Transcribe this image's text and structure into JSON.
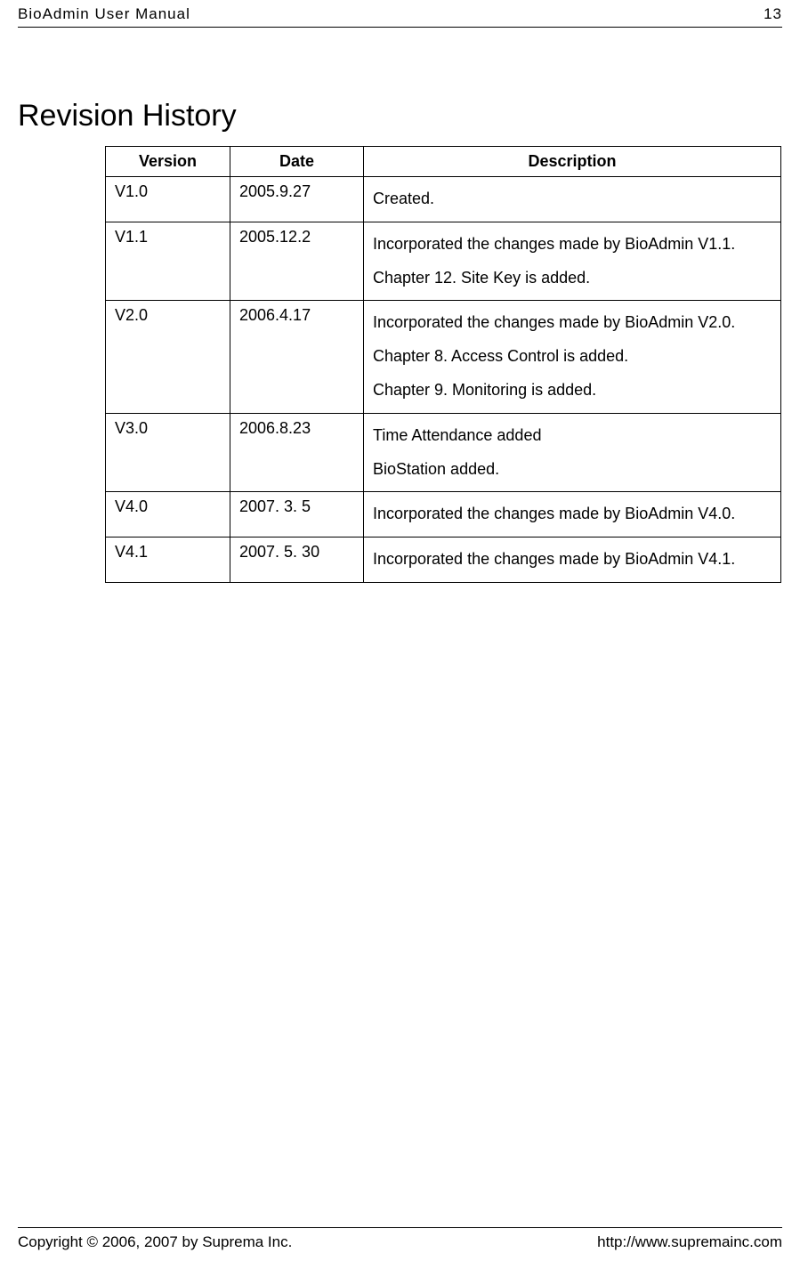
{
  "header": {
    "title": "BioAdmin User Manual",
    "page_number": "13"
  },
  "title": "Revision History",
  "table": {
    "columns": [
      "Version",
      "Date",
      "Description"
    ],
    "rows": [
      {
        "version": "V1.0",
        "date": "2005.9.27",
        "description": [
          "Created."
        ]
      },
      {
        "version": "V1.1",
        "date": "2005.12.2",
        "description": [
          "Incorporated the changes made by BioAdmin V1.1.",
          "Chapter 12. Site Key is added."
        ]
      },
      {
        "version": "V2.0",
        "date": "2006.4.17",
        "description": [
          "Incorporated the changes made by BioAdmin V2.0.",
          "Chapter 8. Access Control is added.",
          "Chapter 9. Monitoring is added."
        ]
      },
      {
        "version": "V3.0",
        "date": "2006.8.23",
        "description": [
          "Time Attendance added",
          "BioStation added."
        ]
      },
      {
        "version": "V4.0",
        "date": "2007. 3. 5",
        "description": [
          "Incorporated the changes made by BioAdmin V4.0."
        ]
      },
      {
        "version": "V4.1",
        "date": "2007. 5. 30",
        "description": [
          "Incorporated the changes made by BioAdmin V4.1."
        ]
      }
    ]
  },
  "footer": {
    "copyright": "Copyright © 2006, 2007 by Suprema Inc.",
    "url": "http://www.supremainc.com"
  }
}
